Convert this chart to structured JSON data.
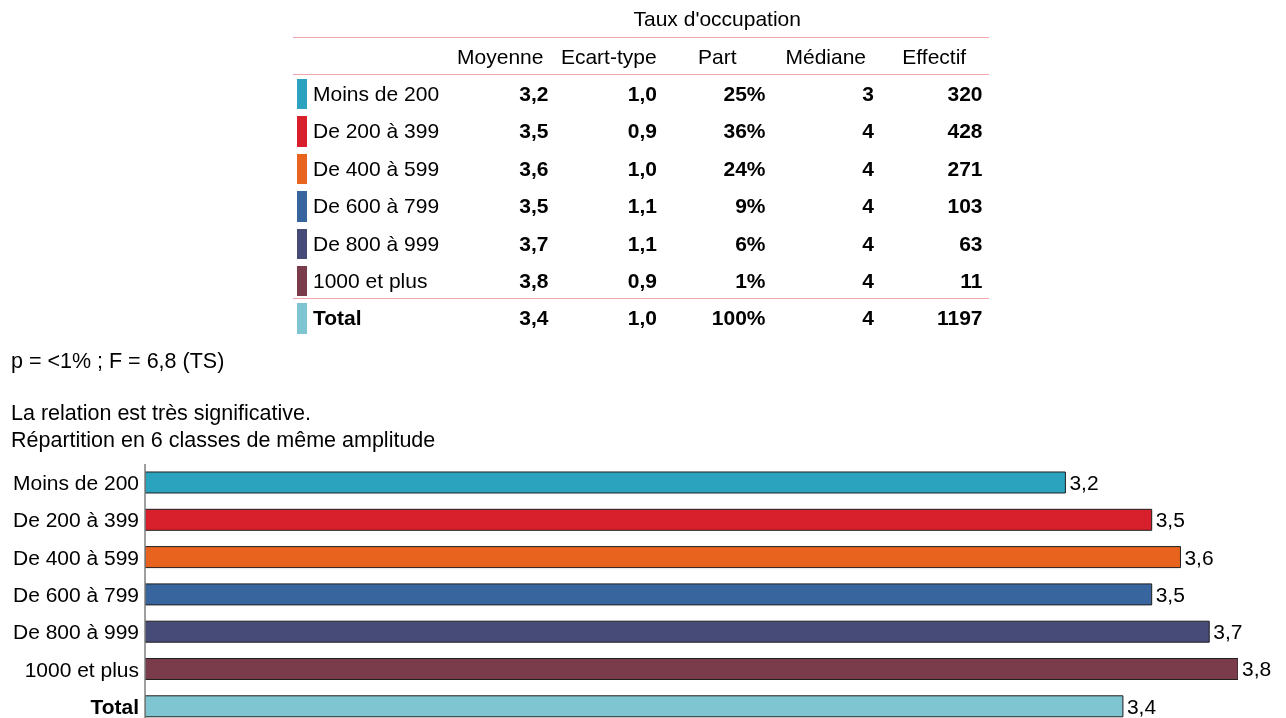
{
  "chart_data": [
    {
      "type": "other",
      "title": "Taux d'occupation",
      "categories": [
        "Moins de 200",
        "De 200 à 399",
        "De 400 à 599",
        "De 600 à 799",
        "De 800 à 999",
        "1000 et plus",
        "Total"
      ],
      "colors": [
        "#2ba3bf",
        "#d8202c",
        "#e8641e",
        "#38659e",
        "#474b78",
        "#7a3b4a",
        "#7ec4d1"
      ],
      "data_labels": true,
      "series": [
        {
          "name": "Moyenne",
          "values": [
            3.2,
            3.5,
            3.6,
            3.5,
            3.7,
            3.8,
            3.4
          ],
          "value_labels": [
            "3,2",
            "3,5",
            "3,6",
            "3,5",
            "3,7",
            "3,8",
            "3,4"
          ]
        },
        {
          "name": "Ecart-type",
          "values": [
            1.0,
            0.9,
            1.0,
            1.1,
            1.1,
            0.9,
            1.0
          ],
          "value_labels": [
            "1,0",
            "0,9",
            "1,0",
            "1,1",
            "1,1",
            "0,9",
            "1,0"
          ]
        },
        {
          "name": "Part",
          "values": [
            25,
            36,
            24,
            9,
            6,
            1,
            100
          ],
          "value_labels": [
            "25%",
            "36%",
            "24%",
            "9%",
            "6%",
            "1%",
            "100%"
          ]
        },
        {
          "name": "Médiane",
          "values": [
            3,
            4,
            4,
            4,
            4,
            4,
            4
          ]
        },
        {
          "name": "Effectif",
          "values": [
            320,
            428,
            271,
            103,
            63,
            11,
            1197
          ]
        }
      ]
    },
    {
      "type": "bar",
      "orientation": "horizontal",
      "categories": [
        "Moins de 200",
        "De 200 à 399",
        "De 400 à 599",
        "De 600 à 799",
        "De 800 à 999",
        "1000 et plus",
        "Total"
      ],
      "values": [
        3.2,
        3.5,
        3.6,
        3.5,
        3.7,
        3.8,
        3.4
      ],
      "value_labels": [
        "3,2",
        "3,5",
        "3,6",
        "3,5",
        "3,7",
        "3,8",
        "3,4"
      ],
      "colors": [
        "#2ba3bf",
        "#d8202c",
        "#e8641e",
        "#38659e",
        "#474b78",
        "#7a3b4a",
        "#7ec4d1"
      ],
      "tick_labels": "y",
      "annotations": [
        "p = <1% ; F = 6,8 (TS)",
        "La relation est très significative.",
        "Répartition en 6 classes de même amplitude"
      ]
    }
  ]
}
